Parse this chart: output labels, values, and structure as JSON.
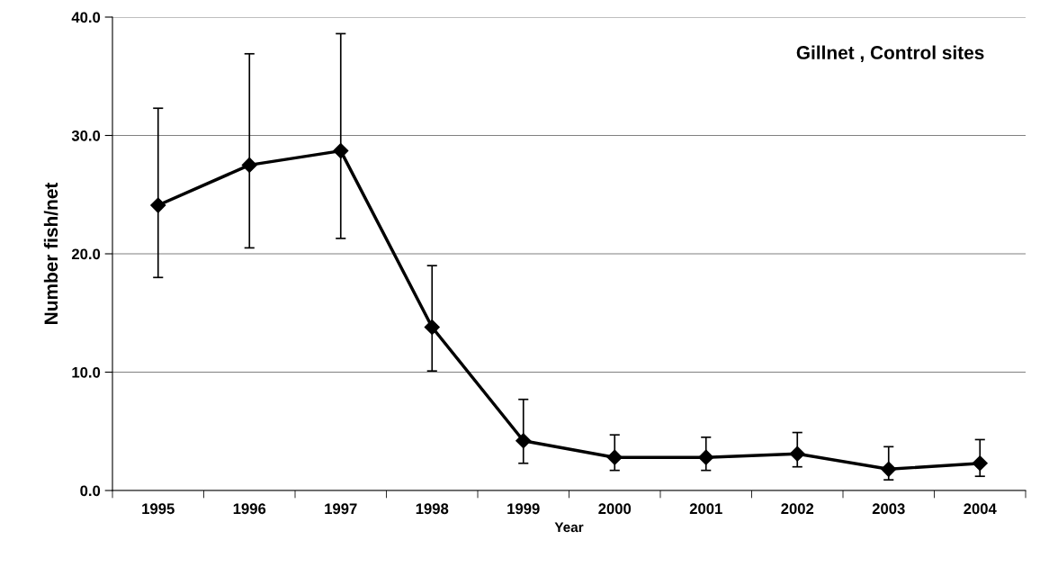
{
  "chart_data": {
    "type": "line",
    "title": "Gillnet , Control sites",
    "xlabel": "Year",
    "ylabel": "Number fish/net",
    "categories": [
      "1995",
      "1996",
      "1997",
      "1998",
      "1999",
      "2000",
      "2001",
      "2002",
      "2003",
      "2004"
    ],
    "series": [
      {
        "color": "#000000",
        "values": [
          24.1,
          27.5,
          28.7,
          13.8,
          4.2,
          2.8,
          2.8,
          3.1,
          1.8,
          2.3
        ],
        "errors": [
          [
            18.0,
            32.3
          ],
          [
            20.5,
            36.9
          ],
          [
            21.3,
            38.6
          ],
          [
            10.1,
            19.0
          ],
          [
            2.3,
            7.7
          ],
          [
            1.7,
            4.7
          ],
          [
            1.7,
            4.5
          ],
          [
            2.0,
            4.9
          ],
          [
            0.9,
            3.7
          ],
          [
            1.2,
            4.3
          ]
        ]
      }
    ],
    "ylim": [
      0,
      40
    ],
    "yticks": [
      {
        "value": 0,
        "label": "0.0"
      },
      {
        "value": 10,
        "label": "10.0"
      },
      {
        "value": 20,
        "label": "20.0"
      },
      {
        "value": 30,
        "label": "30.0"
      },
      {
        "value": 40,
        "label": "40.0"
      }
    ],
    "grid": "y",
    "marker": "diamond",
    "line_style": "solid",
    "legend": false
  }
}
